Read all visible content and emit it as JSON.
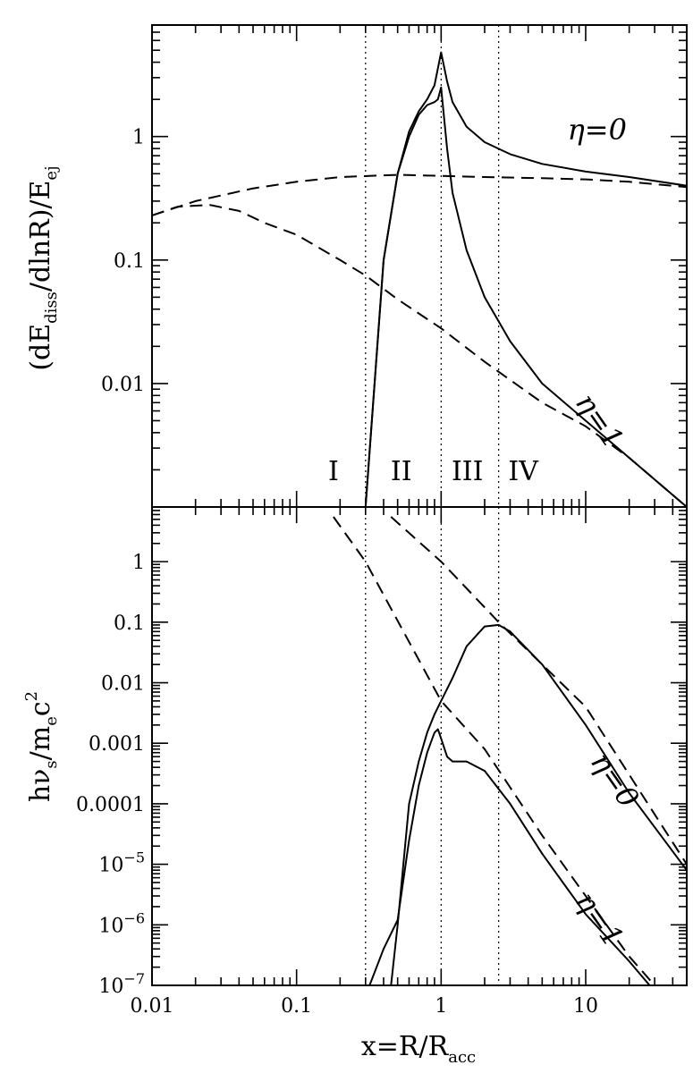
{
  "chart_data": [
    {
      "type": "line",
      "panel": "top",
      "ylabel": "(dE_diss/dlnR)/E_ej",
      "y_scale": "log",
      "x_scale": "log",
      "xlim": [
        0.01,
        50
      ],
      "ylim": [
        0.001,
        8
      ],
      "ytick_labels": [
        {
          "value": 0.01,
          "label": "0.01"
        },
        {
          "value": 0.1,
          "label": "0.1"
        },
        {
          "value": 1,
          "label": "1"
        }
      ],
      "vertical_lines": [
        0.3,
        1,
        2.5
      ],
      "regions": [
        {
          "label": "I",
          "x": 0.18
        },
        {
          "label": "II",
          "x": 0.53
        },
        {
          "label": "III",
          "x": 1.52
        },
        {
          "label": "IV",
          "x": 3.7
        }
      ],
      "series": [
        {
          "name": "η=0",
          "style": "solid",
          "x": [
            0.3,
            0.4,
            0.5,
            0.6,
            0.7,
            0.8,
            0.9,
            1.0,
            1.1,
            1.2,
            1.5,
            2,
            3,
            5,
            10,
            20,
            50
          ],
          "y": [
            0.001,
            0.1,
            0.5,
            1.1,
            1.6,
            2.0,
            2.6,
            4.8,
            2.8,
            1.9,
            1.2,
            0.9,
            0.72,
            0.6,
            0.52,
            0.47,
            0.4
          ]
        },
        {
          "name": "η=1",
          "style": "solid",
          "x": [
            0.3,
            0.4,
            0.5,
            0.6,
            0.7,
            0.8,
            0.9,
            0.95,
            1.0,
            1.1,
            1.2,
            1.5,
            2,
            3,
            5,
            10,
            20,
            50
          ],
          "y": [
            0.001,
            0.1,
            0.5,
            1.0,
            1.5,
            1.8,
            1.9,
            2.0,
            2.5,
            0.8,
            0.35,
            0.12,
            0.05,
            0.022,
            0.01,
            0.005,
            0.0025,
            0.001
          ]
        },
        {
          "name": "",
          "style": "dashed",
          "x": [
            0.01,
            0.02,
            0.05,
            0.1,
            0.2,
            0.5,
            1,
            2,
            5,
            10,
            20,
            50
          ],
          "y": [
            0.23,
            0.3,
            0.38,
            0.43,
            0.47,
            0.49,
            0.48,
            0.47,
            0.46,
            0.45,
            0.43,
            0.39
          ]
        },
        {
          "name": "",
          "style": "dashed",
          "x": [
            0.01,
            0.015,
            0.025,
            0.04,
            0.06,
            0.1,
            0.2,
            0.3,
            0.5,
            1,
            2,
            5,
            10,
            20,
            50
          ],
          "y": [
            0.23,
            0.27,
            0.28,
            0.25,
            0.2,
            0.16,
            0.1,
            0.075,
            0.048,
            0.028,
            0.015,
            0.007,
            0.0045,
            0.0025,
            0.001
          ]
        }
      ],
      "curve_labels": [
        {
          "text": "η=0",
          "x": 12,
          "y": 0.95
        },
        {
          "text": "η=1",
          "x": 11,
          "y": 0.0045
        }
      ]
    },
    {
      "type": "line",
      "panel": "bottom",
      "xlabel": "x=R/R_acc",
      "ylabel": "hν_s/m_e c^2",
      "y_scale": "log",
      "x_scale": "log",
      "xlim": [
        0.01,
        50
      ],
      "ylim": [
        1e-07,
        8
      ],
      "xtick_labels": [
        {
          "value": 0.01,
          "label": "0.01"
        },
        {
          "value": 0.1,
          "label": "0.1"
        },
        {
          "value": 1,
          "label": "1"
        },
        {
          "value": 10,
          "label": "10"
        }
      ],
      "ytick_labels": [
        {
          "value": 1e-07,
          "label": "10",
          "exp": "-7"
        },
        {
          "value": 1e-06,
          "label": "10",
          "exp": "-6"
        },
        {
          "value": 1e-05,
          "label": "10",
          "exp": "-5"
        },
        {
          "value": 0.0001,
          "label": "0.0001"
        },
        {
          "value": 0.001,
          "label": "0.001"
        },
        {
          "value": 0.01,
          "label": "0.01"
        },
        {
          "value": 0.1,
          "label": "0.1"
        },
        {
          "value": 1,
          "label": "1"
        }
      ],
      "vertical_lines": [
        0.3,
        1,
        2.5
      ],
      "series": [
        {
          "name": "η=0",
          "style": "solid",
          "x": [
            0.45,
            0.5,
            0.6,
            0.7,
            0.8,
            0.9,
            1.0,
            1.2,
            1.5,
            2.0,
            2.5,
            3,
            5,
            10,
            20,
            50
          ],
          "y": [
            1e-07,
            1e-06,
            0.0001,
            0.0005,
            0.0015,
            0.003,
            0.005,
            0.012,
            0.04,
            0.085,
            0.09,
            0.07,
            0.02,
            0.002,
            0.00015,
            8e-06
          ]
        },
        {
          "name": "η=1",
          "style": "solid",
          "x": [
            0.32,
            0.4,
            0.5,
            0.6,
            0.7,
            0.8,
            0.9,
            0.95,
            1.0,
            1.1,
            1.2,
            1.5,
            2,
            3,
            5,
            10,
            20,
            30
          ],
          "y": [
            1e-07,
            4e-07,
            1.2e-06,
            2.5e-05,
            0.0002,
            0.0007,
            0.0015,
            0.0017,
            0.0012,
            0.0006,
            0.0005,
            0.0005,
            0.00035,
            0.0001,
            1.5e-05,
            1.5e-06,
            2.5e-07,
            8e-08
          ]
        },
        {
          "name": "",
          "style": "dashed",
          "x": [
            0.45,
            1,
            2.5,
            10,
            50
          ],
          "y": [
            5.5,
            1.0,
            0.1,
            0.004,
            1e-05
          ]
        },
        {
          "name": "",
          "style": "dashed",
          "x": [
            0.18,
            0.3,
            1,
            2,
            5,
            10,
            20,
            30
          ],
          "y": [
            5.5,
            1.0,
            0.005,
            0.0008,
            3e-05,
            3e-06,
            3e-07,
            1e-07
          ]
        }
      ],
      "curve_labels": [
        {
          "text": "η=0",
          "x": 14,
          "y": 0.0002
        },
        {
          "text": "η=1",
          "x": 11,
          "y": 1e-06
        }
      ]
    }
  ]
}
